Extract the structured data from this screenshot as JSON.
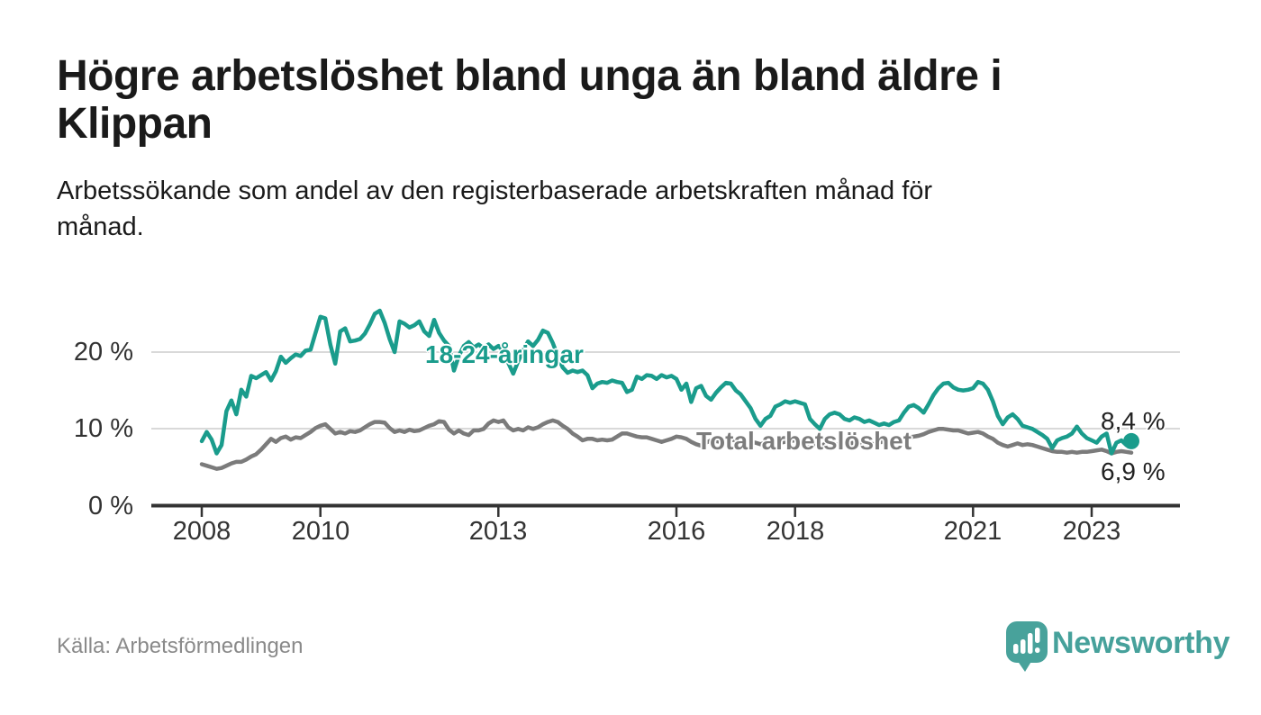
{
  "header": {
    "title_lines": [
      "Högre arbetslöshet bland unga än bland äldre i",
      "Klippan"
    ],
    "title": "Högre arbetslöshet bland unga än bland äldre i Klippan",
    "subtitle_lines": [
      "Arbetssökande som andel av den registerbaserade arbetskraften månad för",
      "månad."
    ],
    "subtitle": "Arbetssökande som andel av den registerbaserade arbetskraften månad för månad."
  },
  "footer": {
    "source": "Källa: Arbetsförmedlingen",
    "brand": "Newsworthy"
  },
  "colors": {
    "youth_line": "#1a9c8c",
    "total_line": "#7b7b7b",
    "total_label": "#7d7d7d",
    "grid": "#d9d9d9",
    "axis": "#333333",
    "end_label_text": "#222222",
    "brand_teal": "#48a29b"
  },
  "chart_data": {
    "type": "line",
    "title": "Högre arbetslöshet bland unga än bland äldre i Klippan",
    "xlabel": "",
    "ylabel": "Arbetssökande som andel av den registerbaserade arbetskraften",
    "x_unit": "månad",
    "x_start": "2008-01",
    "x_end": "2023-09",
    "ylim": [
      0,
      28
    ],
    "grid": "horizontal",
    "legend_position": "inline-labels",
    "y_ticks": [
      {
        "label": "20 %",
        "value": 20
      },
      {
        "label": "10 %",
        "value": 10
      },
      {
        "label": "0 %",
        "value": 0
      }
    ],
    "x_ticks": [
      "2008",
      "2010",
      "2013",
      "2016",
      "2018",
      "2021",
      "2023"
    ],
    "series": [
      {
        "name": "18-24-åringar",
        "color": "#1a9c8c",
        "end_label": "8,4 %",
        "end_value": 8.4,
        "values": [
          8.4,
          9.6,
          8.6,
          6.8,
          7.9,
          12.3,
          13.7,
          11.9,
          15.1,
          14.2,
          16.9,
          16.6,
          17.0,
          17.4,
          16.3,
          17.5,
          19.4,
          18.6,
          19.2,
          19.7,
          19.5,
          20.2,
          20.3,
          22.5,
          24.6,
          24.4,
          21.0,
          18.5,
          22.7,
          23.1,
          21.4,
          21.5,
          21.7,
          22.4,
          23.6,
          25.0,
          25.4,
          23.8,
          21.7,
          20.0,
          24.0,
          23.7,
          23.2,
          23.5,
          24.0,
          22.7,
          22.1,
          24.2,
          22.5,
          21.5,
          20.8,
          17.6,
          19.5,
          20.8,
          21.3,
          20.6,
          21.0,
          20.5,
          21.0,
          20.4,
          20.8,
          20.2,
          18.6,
          17.2,
          18.8,
          20.2,
          21.4,
          20.8,
          21.6,
          22.8,
          22.5,
          21.2,
          19.5,
          18.0,
          17.3,
          17.6,
          17.4,
          17.6,
          17.0,
          15.3,
          15.9,
          16.1,
          16.0,
          16.3,
          16.1,
          16.0,
          14.8,
          15.1,
          16.8,
          16.5,
          17.0,
          16.9,
          16.5,
          17.0,
          16.7,
          16.9,
          16.5,
          15.1,
          15.9,
          13.5,
          15.3,
          15.6,
          14.3,
          13.8,
          14.7,
          15.4,
          16.0,
          15.9,
          15.0,
          14.5,
          13.6,
          12.7,
          11.3,
          10.4,
          11.3,
          11.7,
          12.9,
          13.2,
          13.6,
          13.4,
          13.6,
          13.4,
          13.2,
          11.3,
          10.6,
          10.0,
          11.3,
          11.9,
          12.1,
          11.9,
          11.3,
          11.1,
          11.5,
          11.3,
          10.9,
          11.1,
          10.8,
          10.5,
          10.7,
          10.5,
          10.9,
          11.1,
          12.1,
          12.9,
          13.1,
          12.7,
          12.1,
          13.2,
          14.4,
          15.3,
          15.9,
          16.0,
          15.4,
          15.1,
          15.0,
          15.1,
          15.3,
          16.1,
          15.9,
          15.1,
          13.6,
          11.7,
          10.6,
          11.5,
          11.9,
          11.3,
          10.4,
          10.2,
          10.0,
          9.6,
          9.2,
          8.7,
          7.5,
          8.5,
          8.8,
          9.0,
          9.4,
          10.3,
          9.4,
          8.8,
          8.5,
          8.2,
          9.0,
          9.4,
          6.8,
          8.2,
          8.5,
          7.9,
          8.4
        ]
      },
      {
        "name": "Total arbetslöshet",
        "color": "#7b7b7b",
        "end_label": "6,9 %",
        "end_value": 6.9,
        "values": [
          5.4,
          5.2,
          5.0,
          4.8,
          4.9,
          5.2,
          5.5,
          5.7,
          5.7,
          6.0,
          6.4,
          6.7,
          7.3,
          8.0,
          8.7,
          8.3,
          8.8,
          9.0,
          8.6,
          8.9,
          8.8,
          9.2,
          9.6,
          10.1,
          10.4,
          10.6,
          10.0,
          9.4,
          9.6,
          9.4,
          9.7,
          9.6,
          9.8,
          10.2,
          10.6,
          10.9,
          10.9,
          10.8,
          10.1,
          9.6,
          9.8,
          9.6,
          9.9,
          9.7,
          9.8,
          10.1,
          10.4,
          10.6,
          11.0,
          10.9,
          9.9,
          9.4,
          9.8,
          9.4,
          9.2,
          9.8,
          9.8,
          10.0,
          10.7,
          11.1,
          10.9,
          11.1,
          10.2,
          9.8,
          10.0,
          9.8,
          10.2,
          10.0,
          10.2,
          10.6,
          10.9,
          11.1,
          10.9,
          10.4,
          10.0,
          9.4,
          9.0,
          8.5,
          8.7,
          8.7,
          8.5,
          8.6,
          8.5,
          8.6,
          9.0,
          9.4,
          9.4,
          9.2,
          9.0,
          8.9,
          8.9,
          8.7,
          8.5,
          8.3,
          8.5,
          8.7,
          9.0,
          8.9,
          8.7,
          8.3,
          8.0,
          7.8,
          8.2,
          8.5,
          8.4,
          8.3,
          8.4,
          8.5,
          8.6,
          8.5,
          8.4,
          8.3,
          8.2,
          8.0,
          8.2,
          8.4,
          8.3,
          8.2,
          8.3,
          8.4,
          8.5,
          8.4,
          8.2,
          8.0,
          7.9,
          7.8,
          8.0,
          8.1,
          8.0,
          7.9,
          8.0,
          8.1,
          8.2,
          8.1,
          8.0,
          8.1,
          8.0,
          8.2,
          8.4,
          8.3,
          8.4,
          8.5,
          8.7,
          8.9,
          9.0,
          9.1,
          9.3,
          9.6,
          9.8,
          10.0,
          10.0,
          9.9,
          9.8,
          9.8,
          9.6,
          9.4,
          9.5,
          9.6,
          9.4,
          9.0,
          8.7,
          8.2,
          7.9,
          7.7,
          7.9,
          8.1,
          7.9,
          8.0,
          7.9,
          7.7,
          7.5,
          7.3,
          7.1,
          7.0,
          7.0,
          6.9,
          7.0,
          6.9,
          7.0,
          7.0,
          7.1,
          7.2,
          7.3,
          7.1,
          6.8,
          7.0,
          7.1,
          7.0,
          6.9
        ]
      }
    ]
  }
}
